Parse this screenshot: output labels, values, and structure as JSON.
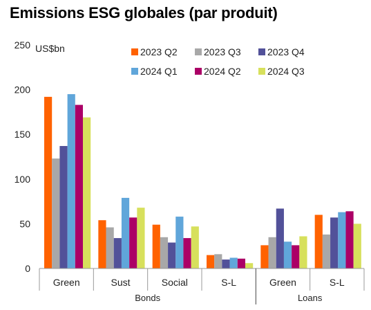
{
  "chart_data": {
    "type": "bar",
    "title": "Emissions ESG globales (par produit)",
    "ylabel": "US$bn",
    "ylim": [
      0,
      250
    ],
    "yticks": [
      0,
      50,
      100,
      150,
      200,
      250
    ],
    "grid": false,
    "legend_position": "top-right",
    "categories": [
      "Green",
      "Sust",
      "Social",
      "S-L",
      "Green",
      "S-L"
    ],
    "groups": [
      {
        "label": "Bonds",
        "categories": [
          0,
          1,
          2,
          3
        ]
      },
      {
        "label": "Loans",
        "categories": [
          4,
          5
        ]
      }
    ],
    "series": [
      {
        "name": "2023 Q2",
        "color": "#ff6200",
        "values": [
          192,
          54,
          49,
          15,
          26,
          60
        ]
      },
      {
        "name": "2023 Q3",
        "color": "#a8a8a8",
        "values": [
          123,
          46,
          35,
          16,
          35,
          38
        ]
      },
      {
        "name": "2023 Q4",
        "color": "#525199",
        "values": [
          137,
          34,
          29,
          10,
          67,
          57
        ]
      },
      {
        "name": "2024 Q1",
        "color": "#60a6da",
        "values": [
          195,
          79,
          58,
          12,
          30,
          63
        ]
      },
      {
        "name": "2024 Q2",
        "color": "#ab0066",
        "values": [
          183,
          57,
          34,
          11,
          26,
          64
        ]
      },
      {
        "name": "2024 Q3",
        "color": "#d7e05c",
        "values": [
          169,
          68,
          47,
          6,
          36,
          50
        ]
      }
    ]
  }
}
